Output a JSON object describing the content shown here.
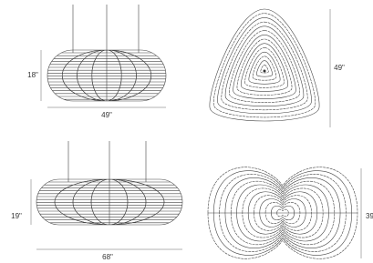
{
  "lamps": [
    {
      "height_label": "18\"",
      "width_label": "49\"",
      "depth_label": "49\""
    },
    {
      "height_label": "19\"",
      "width_label": "68\"",
      "depth_label": "39"
    }
  ]
}
